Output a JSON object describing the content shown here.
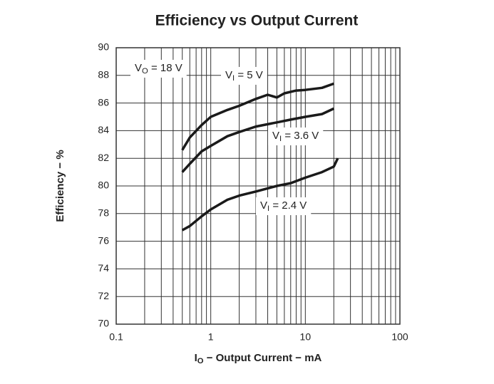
{
  "chart_data": {
    "type": "line",
    "title": "Efficiency vs Output Current",
    "x_label": "IO − Output Current − mA",
    "y_label": "Efficiency − %",
    "x_scale": "log",
    "grid": true,
    "xlim": [
      0.1,
      100
    ],
    "xticks": [
      0.1,
      1,
      10,
      100
    ],
    "x_minor_ticks": [
      0.2,
      0.3,
      0.4,
      0.5,
      0.6,
      0.7,
      0.8,
      0.9,
      2,
      3,
      4,
      5,
      6,
      7,
      8,
      9,
      20,
      30,
      40,
      50,
      60,
      70,
      80,
      90
    ],
    "ylim": [
      70,
      90
    ],
    "yticks": [
      70,
      72,
      74,
      76,
      78,
      80,
      82,
      84,
      86,
      88,
      90
    ],
    "annotations": [
      "VO = 18 V"
    ],
    "series": [
      {
        "name": "VI = 5 V",
        "color": "#1a1a1a",
        "x": [
          0.5,
          0.6,
          0.8,
          1,
          1.5,
          2,
          3,
          4,
          5,
          6,
          8,
          10,
          15,
          20
        ],
        "values": [
          82.6,
          83.5,
          84.4,
          85.0,
          85.5,
          85.8,
          86.3,
          86.6,
          86.4,
          86.7,
          86.9,
          86.95,
          87.1,
          87.4
        ]
      },
      {
        "name": "VI = 3.6 V",
        "color": "#1a1a1a",
        "x": [
          0.5,
          0.6,
          0.8,
          1,
          1.5,
          2,
          3,
          5,
          7,
          10,
          15,
          20
        ],
        "values": [
          81.0,
          81.6,
          82.5,
          82.9,
          83.6,
          83.9,
          84.3,
          84.6,
          84.8,
          85.0,
          85.2,
          85.6
        ]
      },
      {
        "name": "VI = 2.4 V",
        "color": "#1a1a1a",
        "x": [
          0.5,
          0.6,
          0.8,
          1,
          1.5,
          2,
          3,
          5,
          7,
          10,
          15,
          20,
          22
        ],
        "values": [
          76.8,
          77.1,
          77.8,
          78.3,
          79.0,
          79.3,
          79.6,
          80.0,
          80.2,
          80.6,
          81.0,
          81.4,
          82.0
        ]
      }
    ]
  }
}
